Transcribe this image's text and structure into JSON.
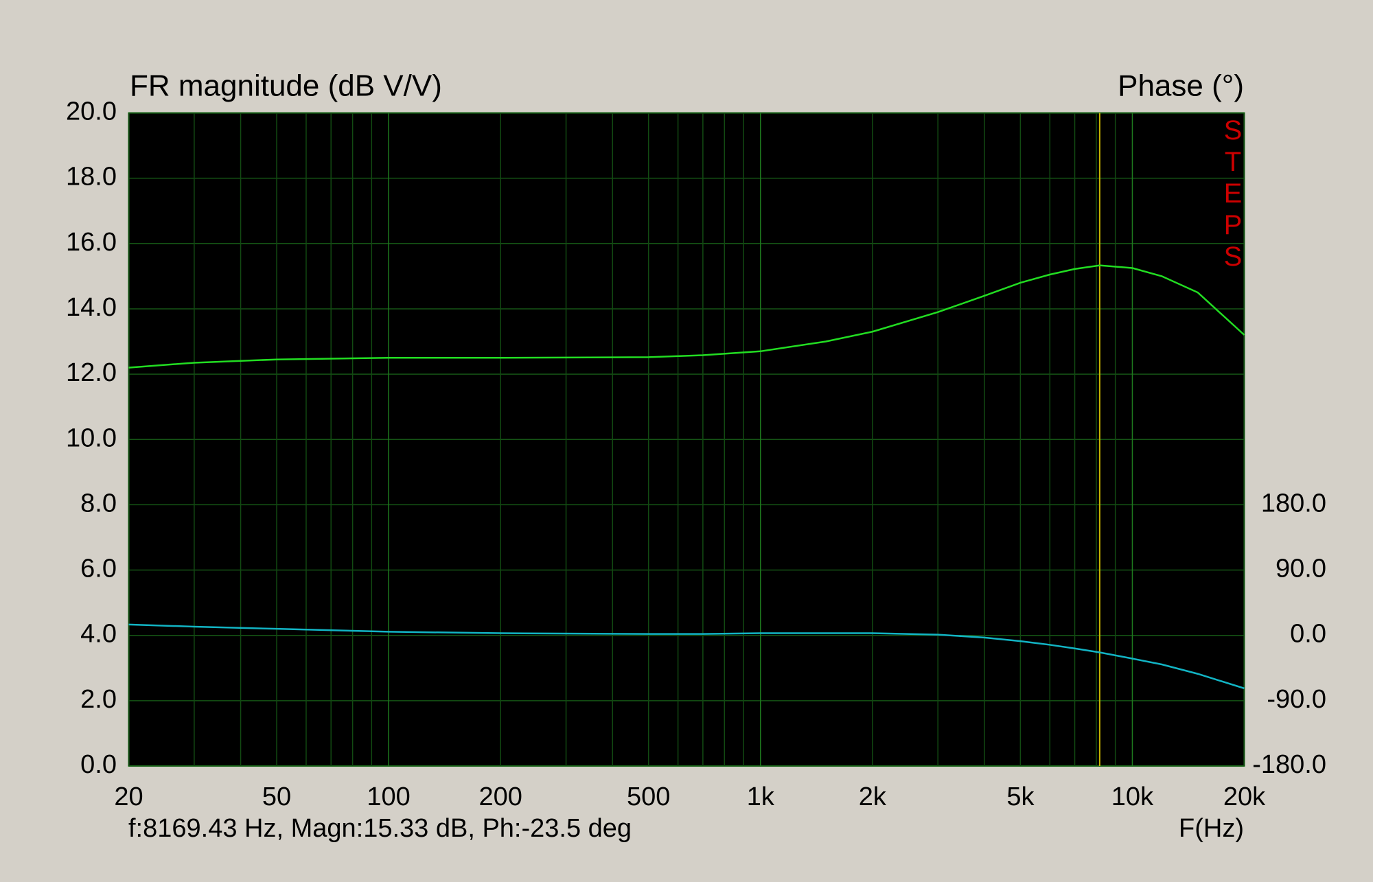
{
  "chart_data": {
    "type": "line",
    "ylabel": "FR magnitude (dB V/V)",
    "y2label": "Phase (°)",
    "xlabel": "F(Hz)",
    "badge": "STEPS",
    "cursor_text": "f:8169.43 Hz, Magn:15.33 dB, Ph:-23.5 deg",
    "cursor_x": 8169.43,
    "cursor_color": "#c8b400",
    "x_log": true,
    "grid": true,
    "xlim": [
      20,
      20000
    ],
    "xticks": [
      20,
      50,
      100,
      200,
      500,
      {
        "value": 1000,
        "label": "1k"
      },
      {
        "value": 2000,
        "label": "2k"
      },
      {
        "value": 5000,
        "label": "5k"
      },
      {
        "value": 10000,
        "label": "10k"
      },
      {
        "value": 20000,
        "label": "20k"
      }
    ],
    "xgrid": [
      30,
      40,
      60,
      70,
      80,
      90,
      300,
      400,
      600,
      700,
      800,
      900,
      3000,
      4000,
      6000,
      7000,
      8000,
      9000
    ],
    "ylim": [
      0,
      20
    ],
    "yticks": [
      {
        "value": 0,
        "label": "0.0"
      },
      {
        "value": 2,
        "label": "2.0"
      },
      {
        "value": 4,
        "label": "4.0"
      },
      {
        "value": 6,
        "label": "6.0"
      },
      {
        "value": 8,
        "label": "8.0"
      },
      {
        "value": 10,
        "label": "10.0"
      },
      {
        "value": 12,
        "label": "12.0"
      },
      {
        "value": 14,
        "label": "14.0"
      },
      {
        "value": 16,
        "label": "16.0"
      },
      {
        "value": 18,
        "label": "18.0"
      },
      {
        "value": 20,
        "label": "20.0"
      }
    ],
    "y2lim": [
      -180,
      720
    ],
    "y2ticks": [
      {
        "value": -180,
        "label": "-180.0"
      },
      {
        "value": -90,
        "label": "-90.0"
      },
      {
        "value": 0,
        "label": "0.0"
      },
      {
        "value": 90,
        "label": "90.0"
      },
      {
        "value": 180,
        "label": "180.0"
      }
    ],
    "x": [
      20,
      30,
      50,
      100,
      200,
      500,
      700,
      1000,
      1500,
      2000,
      3000,
      4000,
      5000,
      6000,
      7000,
      8169.43,
      10000,
      12000,
      15000,
      20000
    ],
    "series": [
      {
        "name": "Magnitude",
        "color": "#22dd22",
        "values": [
          12.2,
          12.35,
          12.45,
          12.5,
          12.5,
          12.52,
          12.58,
          12.7,
          13.0,
          13.3,
          13.9,
          14.4,
          14.8,
          15.05,
          15.22,
          15.33,
          15.25,
          15.0,
          14.5,
          13.2
        ]
      },
      {
        "name": "Phase",
        "color": "#12b4c4",
        "axis": "y2",
        "values": [
          15,
          12,
          9,
          5,
          3,
          2,
          2,
          3,
          3,
          3,
          1,
          -3,
          -8,
          -13,
          -18,
          -23.5,
          -32,
          -40,
          -53,
          -73
        ]
      }
    ]
  }
}
